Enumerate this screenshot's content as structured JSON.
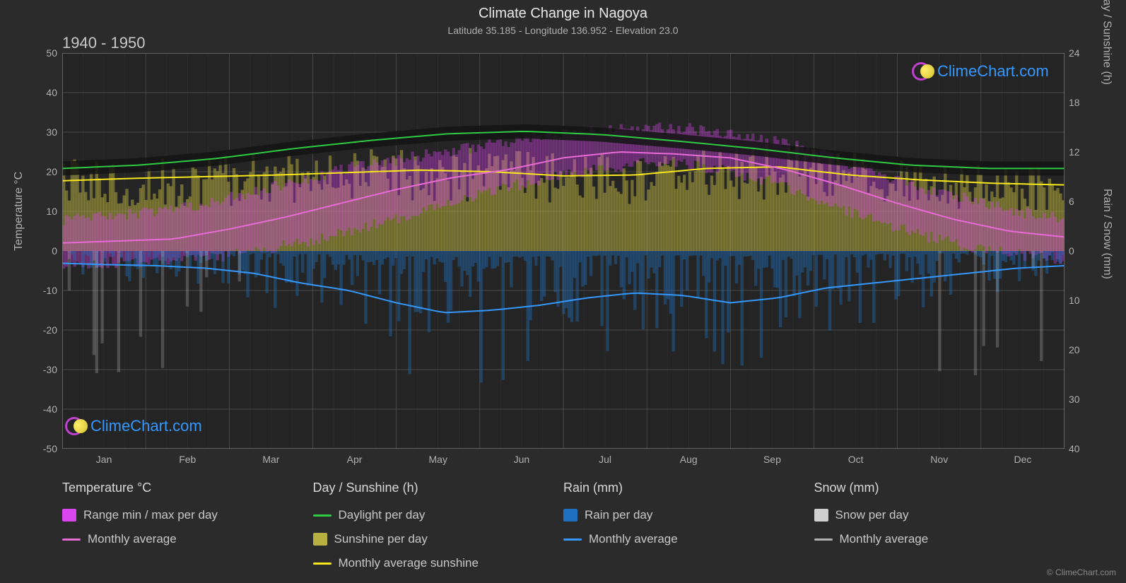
{
  "title": "Climate Change in Nagoya",
  "subtitle": "Latitude 35.185 - Longitude 136.952 - Elevation 23.0",
  "period": "1940 - 1950",
  "axis_left_label": "Temperature °C",
  "axis_right_top_label": "Day / Sunshine (h)",
  "axis_right_bot_label": "Rain / Snow (mm)",
  "copyright": "© ClimeChart.com",
  "logo_text": "ClimeChart.com",
  "chart": {
    "background": "#2b2b2b",
    "plot_bg": "#242424",
    "grid_color": "#555555",
    "border_color": "#777777",
    "y_left": {
      "min": -50,
      "max": 50,
      "step": 10,
      "ticks": [
        -50,
        -40,
        -30,
        -20,
        -10,
        0,
        10,
        20,
        30,
        40,
        50
      ]
    },
    "y_right_top": {
      "min": 0,
      "max": 24,
      "step": 6,
      "ticks": [
        0,
        6,
        12,
        18,
        24
      ]
    },
    "y_right_bot": {
      "min": 0,
      "max": 40,
      "step": 10,
      "ticks": [
        0,
        10,
        20,
        30,
        40
      ]
    },
    "x_labels": [
      "Jan",
      "Feb",
      "Mar",
      "Apr",
      "May",
      "Jun",
      "Jul",
      "Aug",
      "Sep",
      "Oct",
      "Nov",
      "Dec"
    ],
    "series": {
      "daylight": {
        "color": "#2ecc40",
        "width": 2,
        "values_h": [
          10.0,
          10.4,
          11.2,
          12.4,
          13.4,
          14.2,
          14.5,
          14.1,
          13.3,
          12.4,
          11.3,
          10.4,
          10.0,
          10.0
        ]
      },
      "sunshine_avg": {
        "color": "#f8e71c",
        "width": 2,
        "values_h": [
          8.5,
          8.8,
          9.0,
          9.2,
          9.5,
          9.8,
          9.6,
          9.1,
          9.2,
          10.0,
          10.2,
          9.2,
          8.6,
          8.2,
          8.0
        ]
      },
      "temp_avg": {
        "color": "#e86ad6",
        "width": 2,
        "values_c": [
          2.0,
          2.5,
          3.0,
          5.5,
          8.5,
          12.0,
          15.5,
          18.5,
          20.5,
          23.5,
          25.0,
          24.5,
          23.5,
          20.5,
          16.5,
          12.0,
          8.0,
          5.0,
          3.5
        ]
      },
      "rain_avg": {
        "color": "#3498ff",
        "width": 2,
        "values_mm": [
          2.5,
          2.8,
          3.0,
          3.5,
          4.5,
          6.5,
          8.0,
          10.5,
          12.5,
          12.0,
          11.0,
          9.5,
          8.5,
          9.0,
          10.5,
          9.5,
          7.5,
          6.5,
          5.5,
          4.5,
          3.5,
          3.0
        ]
      },
      "temp_range": {
        "color": "#d946ef",
        "opacity": 0.35,
        "min_c": [
          -3,
          -3,
          -2,
          -2,
          0,
          2,
          5,
          8,
          12,
          15,
          18,
          20,
          22,
          22,
          20,
          17,
          12,
          8,
          4,
          1,
          -1,
          -2
        ],
        "max_c": [
          8,
          9,
          10,
          12,
          15,
          18,
          21,
          23,
          25,
          27,
          29,
          30,
          31,
          31,
          30,
          28,
          24,
          20,
          16,
          13,
          10,
          8
        ]
      },
      "sunshine_bars": {
        "color": "#b8b040",
        "opacity": 0.5
      },
      "rain_bars": {
        "color": "#2070c0",
        "opacity": 0.4
      },
      "snow_bars": {
        "color": "#d0d0d0",
        "opacity": 0.25
      }
    }
  },
  "legend": {
    "temp": {
      "title": "Temperature °C",
      "items": [
        {
          "swatch": "#d946ef",
          "type": "box",
          "label": "Range min / max per day"
        },
        {
          "swatch": "#e86ad6",
          "type": "line",
          "label": "Monthly average"
        }
      ]
    },
    "day": {
      "title": "Day / Sunshine (h)",
      "items": [
        {
          "swatch": "#2ecc40",
          "type": "line",
          "label": "Daylight per day"
        },
        {
          "swatch": "#b8b040",
          "type": "box",
          "label": "Sunshine per day"
        },
        {
          "swatch": "#f8e71c",
          "type": "line",
          "label": "Monthly average sunshine"
        }
      ]
    },
    "rain": {
      "title": "Rain (mm)",
      "items": [
        {
          "swatch": "#2070c0",
          "type": "box",
          "label": "Rain per day"
        },
        {
          "swatch": "#3498ff",
          "type": "line",
          "label": "Monthly average"
        }
      ]
    },
    "snow": {
      "title": "Snow (mm)",
      "items": [
        {
          "swatch": "#d0d0d0",
          "type": "box",
          "label": "Snow per day"
        },
        {
          "swatch": "#b0b0b0",
          "type": "line",
          "label": "Monthly average"
        }
      ]
    }
  }
}
